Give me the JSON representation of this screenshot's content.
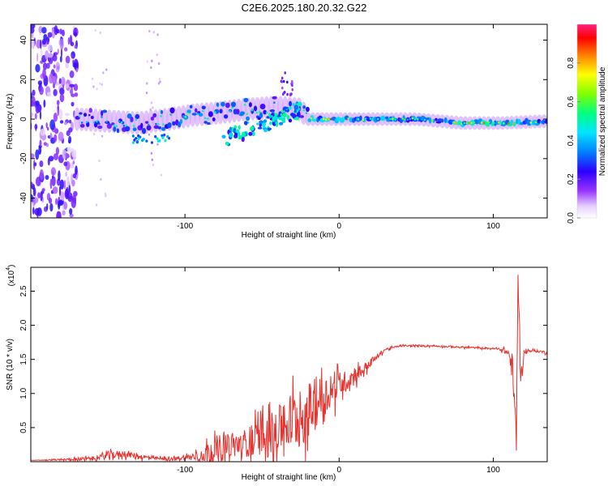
{
  "title": "C2E6.2025.180.20.32.G22",
  "chart_data": [
    {
      "type": "heatmap",
      "xlabel": "Height of straight line (km)",
      "ylabel": "Frequency (Hz)",
      "xlim": [
        -200,
        135
      ],
      "ylim": [
        -50,
        48
      ],
      "xticks": [
        -100,
        0,
        100
      ],
      "xtick_labels": [
        "-100",
        "0",
        "100"
      ],
      "yticks": [
        -40,
        -20,
        0,
        20,
        40
      ],
      "ytick_labels": [
        "-40",
        "-20",
        "0",
        "20",
        "40"
      ],
      "colorbar": {
        "label": "Normalized spectral amplitude",
        "range": [
          0,
          1
        ],
        "ticks": [
          0.0,
          0.2,
          0.4,
          0.6,
          0.8
        ],
        "tick_labels": [
          "0.0",
          "0.2",
          "0.4",
          "0.6",
          "0.8"
        ]
      },
      "ridge": [
        {
          "x": -170,
          "f": 0,
          "amp": 0.45
        },
        {
          "x": -150,
          "f": -1,
          "amp": 0.5
        },
        {
          "x": -130,
          "f": -2,
          "amp": 0.5
        },
        {
          "x": -110,
          "f": 0,
          "amp": 0.55
        },
        {
          "x": -95,
          "f": 2,
          "amp": 0.6
        },
        {
          "x": -80,
          "f": 3,
          "amp": 0.55
        },
        {
          "x": -60,
          "f": 5,
          "amp": 0.55
        },
        {
          "x": -40,
          "f": 6,
          "amp": 0.55
        },
        {
          "x": -25,
          "f": 5,
          "amp": 0.5
        },
        {
          "x": -20,
          "f": 0,
          "amp": 0.75
        },
        {
          "x": 0,
          "f": 0,
          "amp": 0.85
        },
        {
          "x": 20,
          "f": 0,
          "amp": 0.7
        },
        {
          "x": 50,
          "f": 0,
          "amp": 0.6
        },
        {
          "x": 80,
          "f": -2,
          "amp": 0.75
        },
        {
          "x": 105,
          "f": -2,
          "amp": 0.9
        },
        {
          "x": 135,
          "f": -1,
          "amp": 0.6
        }
      ]
    },
    {
      "type": "line",
      "xlabel": "Height of straight line (km)",
      "ylabel": "SNR (10 * v/v)",
      "y_multiplier": "(x10",
      "y_exponent": "4",
      "y_multiplier_close": ")",
      "xlim": [
        -200,
        135
      ],
      "ylim": [
        0,
        2.85
      ],
      "xticks": [
        -100,
        0,
        100
      ],
      "xtick_labels": [
        "-100",
        "0",
        "100"
      ],
      "yticks": [
        0.5,
        1.0,
        1.5,
        2.0,
        2.5
      ],
      "ytick_labels": [
        "0.5",
        "1.0",
        "1.5",
        "2.0",
        "2.5"
      ],
      "color": "#e8302c",
      "series": [
        {
          "x": [
            -200,
            -180,
            -160,
            -150,
            -140,
            -120,
            -110,
            -100,
            -90,
            -80,
            -70,
            -60,
            -50,
            -40,
            -35,
            -30,
            -25,
            -20,
            -15,
            -10,
            -5,
            0,
            5,
            10,
            15,
            20,
            25,
            30,
            40,
            60,
            80,
            100,
            105,
            110,
            112,
            114,
            115,
            116,
            118,
            120,
            125,
            130,
            135
          ],
          "y": [
            0.02,
            0.03,
            0.05,
            0.1,
            0.12,
            0.05,
            0.04,
            0.06,
            0.1,
            0.2,
            0.25,
            0.3,
            0.4,
            0.5,
            0.6,
            0.65,
            0.7,
            0.8,
            0.9,
            1.0,
            1.05,
            1.15,
            1.2,
            1.3,
            1.35,
            1.45,
            1.55,
            1.65,
            1.7,
            1.7,
            1.68,
            1.66,
            1.65,
            1.6,
            1.4,
            0.8,
            0.3,
            2.8,
            1.2,
            1.62,
            1.63,
            1.62,
            1.6
          ],
          "noise": [
            0.0,
            0.02,
            0.05,
            0.1,
            0.08,
            0.04,
            0.04,
            0.06,
            0.15,
            0.35,
            0.3,
            0.35,
            0.45,
            0.55,
            0.65,
            0.75,
            0.8,
            0.7,
            0.6,
            0.5,
            0.4,
            0.3,
            0.25,
            0.2,
            0.15,
            0.1,
            0.06,
            0.03,
            0.02,
            0.02,
            0.02,
            0.02,
            0.03,
            0.1,
            0.25,
            0.35,
            0.3,
            0.2,
            0.3,
            0.05,
            0.03,
            0.03,
            0.03
          ]
        }
      ]
    }
  ]
}
